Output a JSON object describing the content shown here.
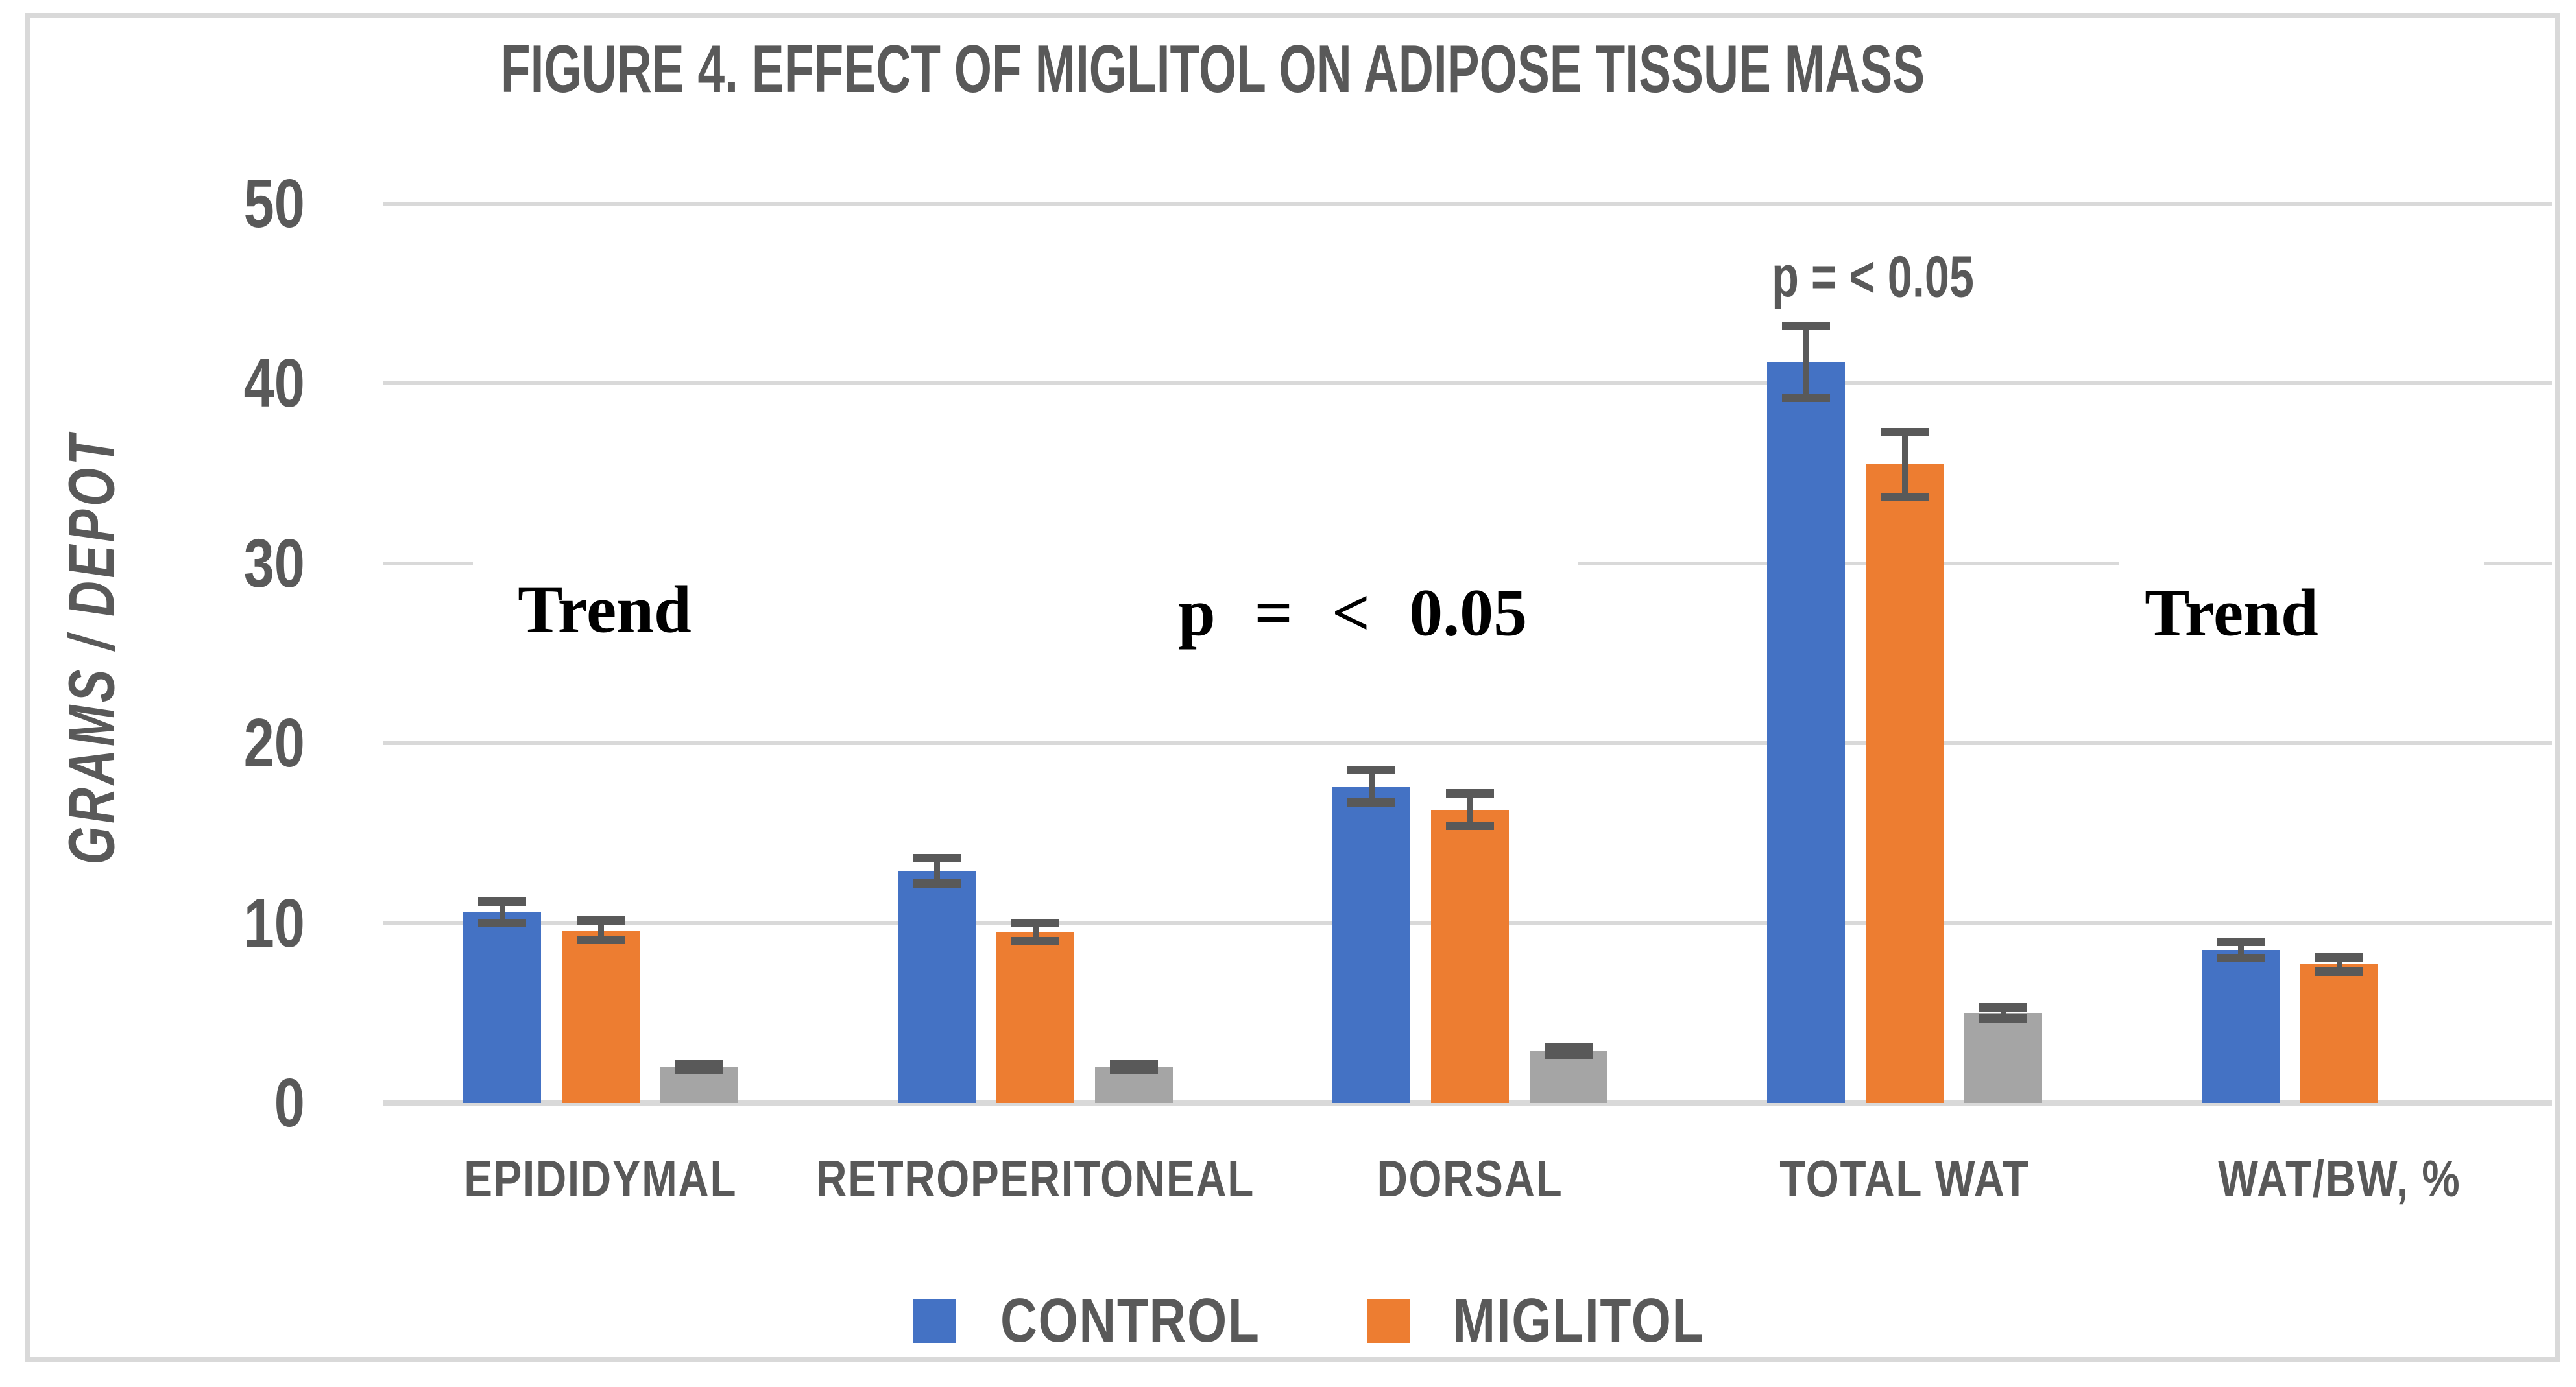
{
  "figure": {
    "title": "FIGURE 4. EFFECT OF MIGLITOL ON ADIPOSE TISSUE MASS",
    "y_axis_label": "GRAMS / DEPOT"
  },
  "colors": {
    "control": "#4472C4",
    "miglitol": "#ED7D31",
    "third_series_gray": "#A5A5A5",
    "error_bar": "#595959",
    "gridline": "#D9D9D9",
    "text_gray": "#595959",
    "annotation_black": "#000000"
  },
  "legend": [
    {
      "label": "CONTROL",
      "color": "#4472C4"
    },
    {
      "label": "MIGLITOL",
      "color": "#ED7D31"
    }
  ],
  "chart_data": {
    "type": "bar",
    "title": "FIGURE 4. EFFECT OF MIGLITOL ON ADIPOSE TISSUE MASS",
    "xlabel": "",
    "ylabel": "GRAMS / DEPOT",
    "ylim": [
      0,
      50
    ],
    "yticks": [
      0,
      10,
      20,
      30,
      40,
      50
    ],
    "grid": true,
    "legend_position": "bottom",
    "categories": [
      "EPIDIDYMAL",
      "RETROPERITONEAL",
      "DORSAL",
      "TOTAL WAT",
      "WAT/BW, %"
    ],
    "series": [
      {
        "name": "CONTROL",
        "color": "#4472C4",
        "values": [
          10.6,
          12.9,
          17.6,
          41.2,
          8.5
        ],
        "errors": [
          0.6,
          0.7,
          0.9,
          2.0,
          0.45
        ]
      },
      {
        "name": "MIGLITOL",
        "color": "#ED7D31",
        "values": [
          9.6,
          9.5,
          16.3,
          35.5,
          7.7
        ],
        "errors": [
          0.55,
          0.5,
          0.9,
          1.8,
          0.4
        ]
      },
      {
        "name": "",
        "color": "#A5A5A5",
        "values": [
          2.0,
          2.0,
          2.9,
          5.0,
          null
        ],
        "errors": [
          0.15,
          0.15,
          0.2,
          0.3,
          null
        ]
      }
    ],
    "annotations": [
      {
        "id": "trend-left",
        "text": "Trend",
        "x_category": "EPIDIDYMAL",
        "y": 27.5,
        "style": "serif"
      },
      {
        "id": "p-mid",
        "text": "p = < 0.05",
        "x_category": "DORSAL",
        "y": 27.5,
        "style": "serif-wide"
      },
      {
        "id": "p-top",
        "text": "p = < 0.05",
        "x_category": "TOTAL WAT",
        "y": 46,
        "style": "sans"
      },
      {
        "id": "trend-right",
        "text": "Trend",
        "x_category": "WAT/BW, %",
        "y": 27.5,
        "style": "serif"
      }
    ]
  }
}
